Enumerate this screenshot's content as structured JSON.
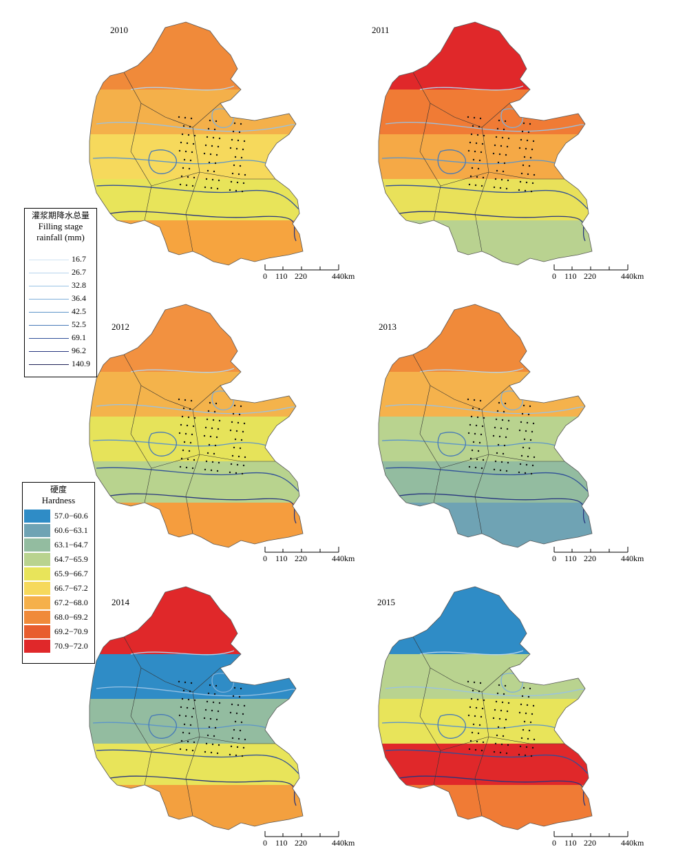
{
  "panels": [
    {
      "year": "2010",
      "colors": [
        "#f08a3a",
        "#f4b04a",
        "#f6d95c",
        "#e8e45a",
        "#f6a43f"
      ]
    },
    {
      "year": "2011",
      "colors": [
        "#e0282a",
        "#f07b35",
        "#f5a946",
        "#e9e15a",
        "#b9d290"
      ]
    },
    {
      "year": "2012",
      "colors": [
        "#f29140",
        "#f4b34b",
        "#e6e35a",
        "#b8d38e",
        "#f59d3e"
      ]
    },
    {
      "year": "2013",
      "colors": [
        "#f08a3a",
        "#f5b24c",
        "#b9d38f",
        "#93bca0",
        "#6fa3b4"
      ]
    },
    {
      "year": "2014",
      "colors": [
        "#e0282a",
        "#2f8cc6",
        "#93bca0",
        "#e8e45a",
        "#f3a03f"
      ]
    },
    {
      "year": "2015",
      "colors": [
        "#2f8cc6",
        "#b9d38f",
        "#e8e45a",
        "#e0282a",
        "#f07b35"
      ]
    }
  ],
  "scale": {
    "labels": [
      "0",
      "110",
      "220",
      "440km"
    ]
  },
  "rain_legend": {
    "title_cn": "灌浆期降水总量",
    "title_en1": "Filling stage",
    "title_en2": "rainfall (mm)",
    "items": [
      {
        "value": "16.7",
        "color": "#cfe3f2"
      },
      {
        "value": "26.7",
        "color": "#b4d3ec"
      },
      {
        "value": "32.8",
        "color": "#98c2e4"
      },
      {
        "value": "36.4",
        "color": "#7fb0da"
      },
      {
        "value": "42.5",
        "color": "#5c95c9"
      },
      {
        "value": "52.5",
        "color": "#4679b7"
      },
      {
        "value": "69.1",
        "color": "#2f4f98"
      },
      {
        "value": "96.2",
        "color": "#27357e"
      },
      {
        "value": "140.9",
        "color": "#1c1f55"
      }
    ]
  },
  "hard_legend": {
    "title_cn": "硬度",
    "title_en": "Hardness",
    "items": [
      {
        "value": "57.0−60.6",
        "color": "#2f8cc6"
      },
      {
        "value": "60.6−63.1",
        "color": "#6fa3b4"
      },
      {
        "value": "63.1−64.7",
        "color": "#93bca0"
      },
      {
        "value": "64.7−65.9",
        "color": "#b9d38f"
      },
      {
        "value": "65.9−66.7",
        "color": "#e8e45a"
      },
      {
        "value": "66.7−67.2",
        "color": "#f6d95c"
      },
      {
        "value": "67.2−68.0",
        "color": "#f5b04a"
      },
      {
        "value": "68.0−69.2",
        "color": "#f08a3a"
      },
      {
        "value": "69.2−70.9",
        "color": "#e85d2e"
      },
      {
        "value": "70.9−72.0",
        "color": "#e0282a"
      }
    ]
  }
}
